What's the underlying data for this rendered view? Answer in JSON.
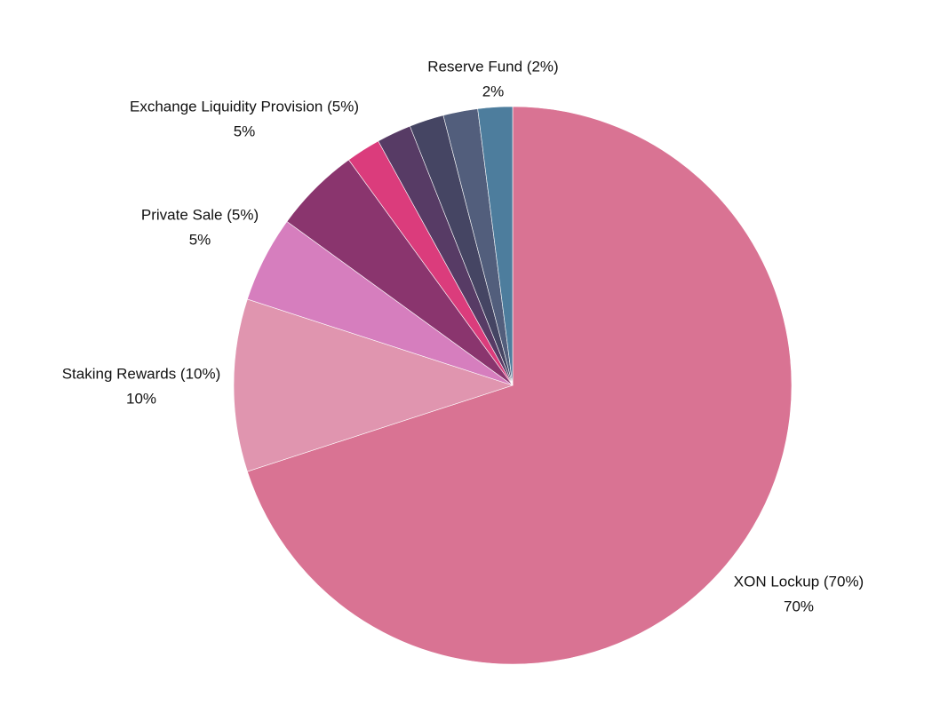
{
  "chart_data": {
    "type": "pie",
    "title": "",
    "start": "top",
    "direction": "clockwise",
    "slices": [
      {
        "name": "XON Lockup",
        "value": 70,
        "label": "XON Lockup (70%)",
        "value_label": "70%",
        "color": "#D97393",
        "labeled": true
      },
      {
        "name": "Staking Rewards",
        "value": 10,
        "label": "Staking Rewards (10%)",
        "value_label": "10%",
        "color": "#E095AF",
        "labeled": true
      },
      {
        "name": "Private Sale",
        "value": 5,
        "label": "Private Sale (5%)",
        "value_label": "5%",
        "color": "#D67EBE",
        "labeled": true
      },
      {
        "name": "Exchange Liquidity Provision",
        "value": 5,
        "label": "Exchange Liquidity Provision (5%)",
        "value_label": "5%",
        "color": "#8A356E",
        "labeled": true
      },
      {
        "name": "",
        "value": 2,
        "label": "",
        "value_label": "",
        "color": "#DB3C7C",
        "labeled": false
      },
      {
        "name": "",
        "value": 2,
        "label": "",
        "value_label": "",
        "color": "#573B65",
        "labeled": false
      },
      {
        "name": "",
        "value": 2,
        "label": "",
        "value_label": "",
        "color": "#454563",
        "labeled": false
      },
      {
        "name": "",
        "value": 2,
        "label": "",
        "value_label": "",
        "color": "#525E7C",
        "labeled": false
      },
      {
        "name": "Reserve Fund",
        "value": 2,
        "label": "Reserve Fund (2%)",
        "value_label": "2%",
        "color": "#4D7D9D",
        "labeled": true
      }
    ]
  }
}
